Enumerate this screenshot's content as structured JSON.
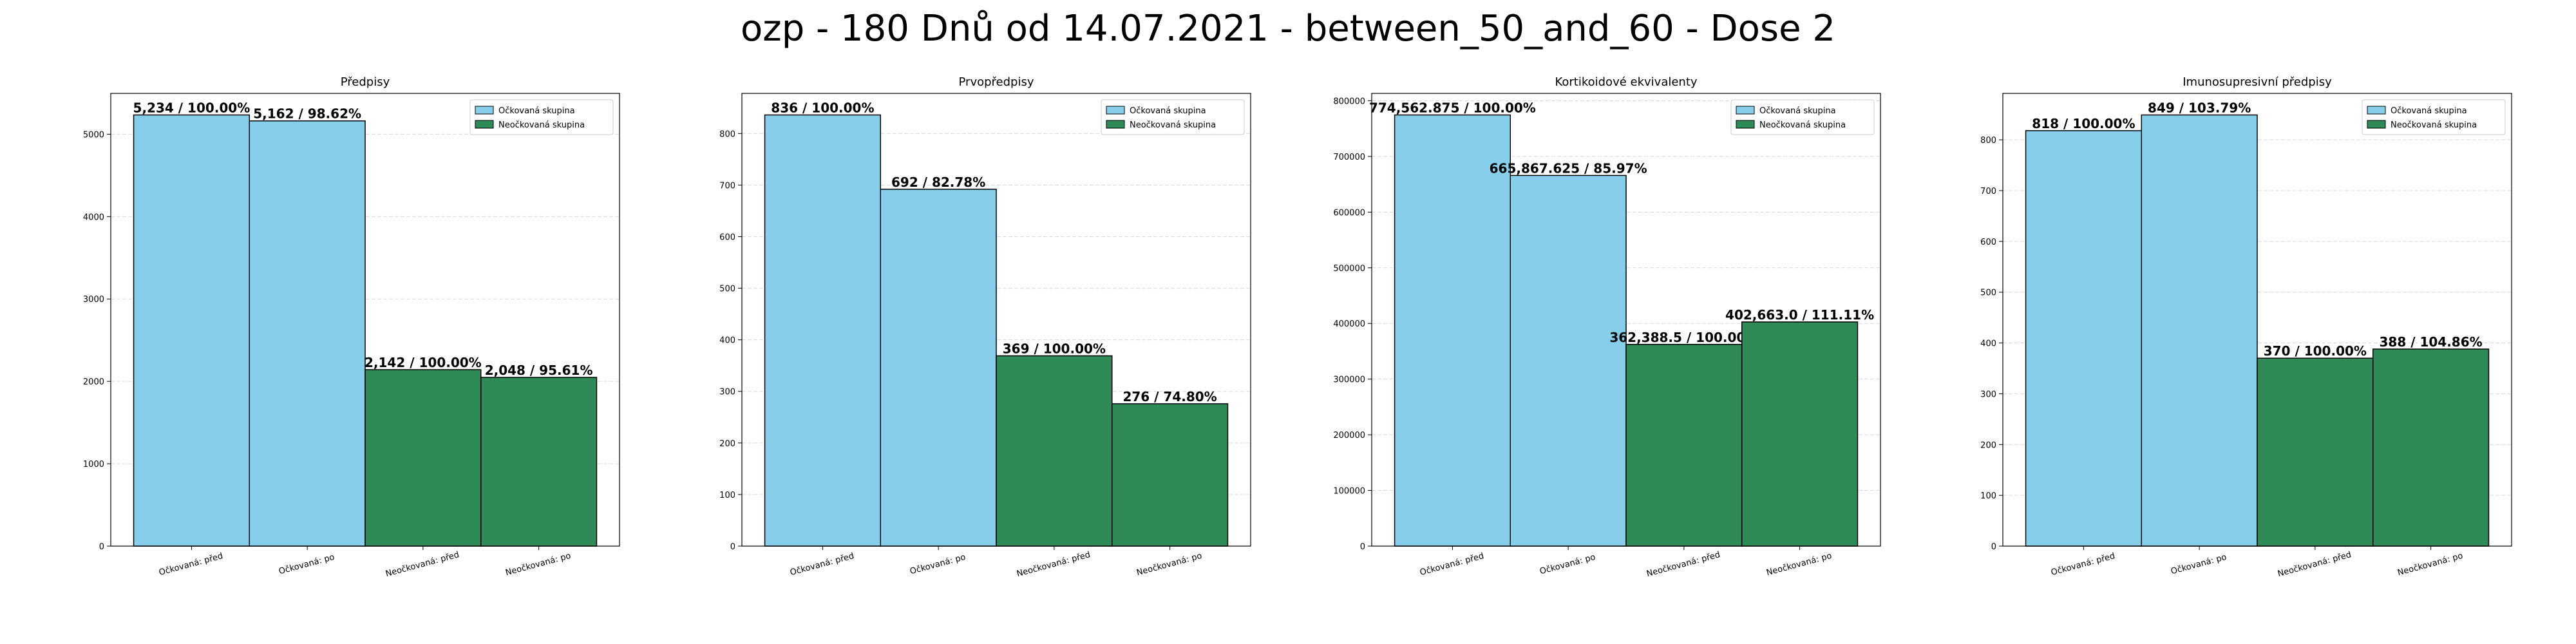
{
  "figure": {
    "title": "ozp - 180 Dnů od 14.07.2021 - between_50_and_60 - Dose 2"
  },
  "colors": {
    "vaccinated": "#87CEEB",
    "unvaccinated": "#2E8B57",
    "edge": "#000000",
    "grid": "#d9d9d9"
  },
  "legend": {
    "vaccinated": "Očkovaná skupina",
    "unvaccinated": "Neočkovaná skupina",
    "placement": "top-right"
  },
  "chart_data": [
    {
      "type": "bar",
      "title": "Předpisy",
      "categories": [
        "Očkovaná: před",
        "Očkovaná: po",
        "Neočkovaná: před",
        "Neočkovaná: po"
      ],
      "values": [
        5234,
        5162,
        2142,
        2048
      ],
      "labels": [
        "5,234 / 100.00%",
        "5,162 / 98.62%",
        "2,142 / 100.00%",
        "2,048 / 95.61%"
      ],
      "groups": [
        "vaccinated",
        "vaccinated",
        "unvaccinated",
        "unvaccinated"
      ],
      "yticks": [
        0,
        1000,
        2000,
        3000,
        4000,
        5000
      ],
      "ytick_labels": [
        "0",
        "1000",
        "2000",
        "3000",
        "4000",
        "5000"
      ],
      "ylim": [
        0,
        5495.7
      ],
      "grid": true
    },
    {
      "type": "bar",
      "title": "Prvopředpisy",
      "categories": [
        "Očkovaná: před",
        "Očkovaná: po",
        "Neočkovaná: před",
        "Neočkovaná: po"
      ],
      "values": [
        836,
        692,
        369,
        276
      ],
      "labels": [
        "836 / 100.00%",
        "692 / 82.78%",
        "369 / 100.00%",
        "276 / 74.80%"
      ],
      "groups": [
        "vaccinated",
        "vaccinated",
        "unvaccinated",
        "unvaccinated"
      ],
      "yticks": [
        0,
        100,
        200,
        300,
        400,
        500,
        600,
        700,
        800
      ],
      "ytick_labels": [
        "0",
        "100",
        "200",
        "300",
        "400",
        "500",
        "600",
        "700",
        "800"
      ],
      "ylim": [
        0,
        877.8
      ],
      "grid": true
    },
    {
      "type": "bar",
      "title": "Kortikoidové ekvivalenty",
      "categories": [
        "Očkovaná: před",
        "Očkovaná: po",
        "Neočkovaná: před",
        "Neočkovaná: po"
      ],
      "values": [
        774562.875,
        665867.625,
        362388.5,
        402663.0
      ],
      "labels": [
        "774,562.875 / 100.00%",
        "665,867.625 / 85.97%",
        "362,388.5 / 100.00%",
        "402,663.0 / 111.11%"
      ],
      "groups": [
        "vaccinated",
        "vaccinated",
        "unvaccinated",
        "unvaccinated"
      ],
      "yticks": [
        0,
        100000,
        200000,
        300000,
        400000,
        500000,
        600000,
        700000,
        800000
      ],
      "ytick_labels": [
        "0",
        "100000",
        "200000",
        "300000",
        "400000",
        "500000",
        "600000",
        "700000",
        "800000"
      ],
      "ylim": [
        0,
        813291
      ],
      "grid": true
    },
    {
      "type": "bar",
      "title": "Imunosupresivní předpisy",
      "categories": [
        "Očkovaná: před",
        "Očkovaná: po",
        "Neočkovaná: před",
        "Neočkovaná: po"
      ],
      "values": [
        818,
        849,
        370,
        388
      ],
      "labels": [
        "818 / 100.00%",
        "849 / 103.79%",
        "370 / 100.00%",
        "388 / 104.86%"
      ],
      "groups": [
        "vaccinated",
        "vaccinated",
        "unvaccinated",
        "unvaccinated"
      ],
      "yticks": [
        0,
        100,
        200,
        300,
        400,
        500,
        600,
        700,
        800
      ],
      "ytick_labels": [
        "0",
        "100",
        "200",
        "300",
        "400",
        "500",
        "600",
        "700",
        "800"
      ],
      "ylim": [
        0,
        891.45
      ],
      "grid": true
    }
  ]
}
